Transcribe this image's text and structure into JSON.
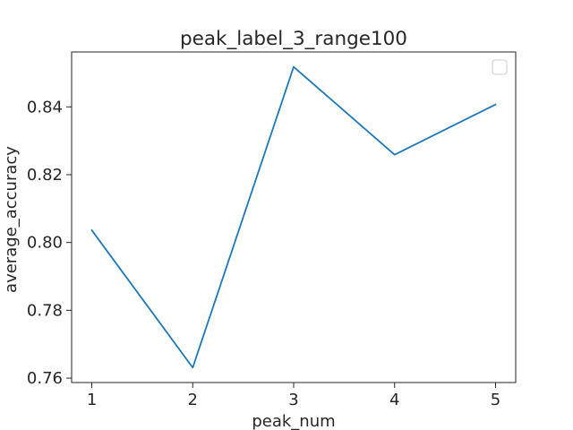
{
  "chart_data": {
    "type": "line",
    "title": "peak_label_3_range100",
    "xlabel": "peak_num",
    "ylabel": "average_accuracy",
    "x": [
      1,
      2,
      3,
      4,
      5
    ],
    "series": [
      {
        "values": [
          0.8036,
          0.7631,
          0.8518,
          0.8259,
          0.8407
        ]
      }
    ],
    "xticks": [
      "1",
      "2",
      "3",
      "4",
      "5"
    ],
    "yticks": [
      "0.76",
      "0.78",
      "0.80",
      "0.82",
      "0.84"
    ],
    "xlim": [
      0.8,
      5.2
    ],
    "ylim": [
      0.7587,
      0.8562
    ],
    "grid": false,
    "legend": "top-right, empty",
    "colors": {
      "line": "#1f77b4",
      "axis": "#262626",
      "legend_border": "#cccccc"
    }
  }
}
